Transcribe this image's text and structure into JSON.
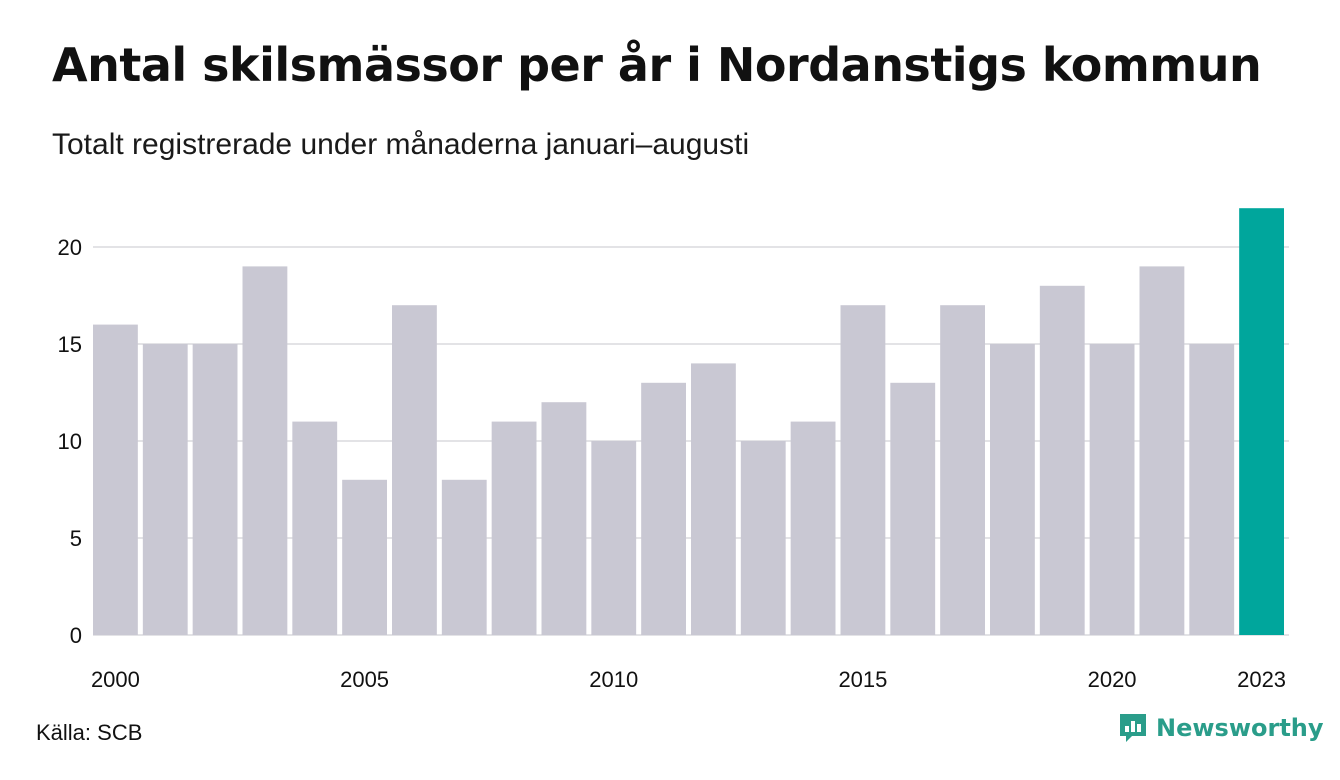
{
  "title": "Antal skilsmässor per år i Nordanstigs kommun",
  "subtitle": "Totalt registrerade under månaderna januari–augusti",
  "source": "Källa: SCB",
  "brand": "Newsworthy",
  "colors": {
    "bar": "#c9c8d3",
    "highlight": "#00a69c",
    "grid": "#e3e3e6",
    "brand": "#2a9d8a"
  },
  "chart_data": {
    "type": "bar",
    "categories": [
      "2000",
      "2001",
      "2002",
      "2003",
      "2004",
      "2005",
      "2006",
      "2007",
      "2008",
      "2009",
      "2010",
      "2011",
      "2012",
      "2013",
      "2014",
      "2015",
      "2016",
      "2017",
      "2018",
      "2019",
      "2020",
      "2021",
      "2022",
      "2023"
    ],
    "values": [
      16,
      15,
      15,
      19,
      11,
      8,
      17,
      8,
      11,
      12,
      10,
      13,
      14,
      10,
      11,
      17,
      13,
      17,
      15,
      18,
      15,
      19,
      15,
      22
    ],
    "highlight_index": 23,
    "ylim": [
      0,
      22
    ],
    "yticks": [
      0,
      5,
      10,
      15,
      20
    ],
    "xtick_labels": [
      "2000",
      "2005",
      "2010",
      "2015",
      "2020",
      "2023"
    ],
    "grid": true,
    "legend": false
  }
}
